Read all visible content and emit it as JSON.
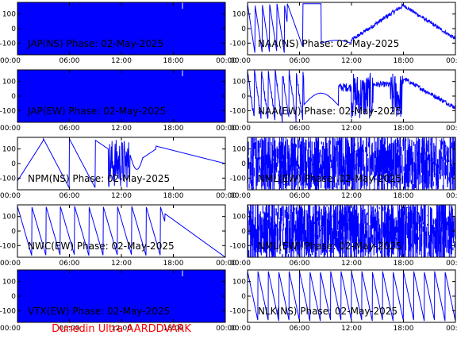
{
  "footer": "Dunedin Ultra AARDDVARK",
  "colors": {
    "trace": "#0000ff",
    "axes": "#000000",
    "footer": "#ff0000"
  },
  "chart_data": [
    {
      "type": "line",
      "title": "JAP(NS) Phase: 02-May-2025",
      "ylim": [
        -180,
        180
      ],
      "yticks": [
        "100",
        "0",
        "-100"
      ],
      "xticks": [
        "00:00",
        "06:00",
        "12:00",
        "18:00",
        "00:00"
      ],
      "pattern": "solid"
    },
    {
      "type": "line",
      "title": "NAA(NS) Phase: 02-May-2025",
      "ylim": [
        -180,
        180
      ],
      "yticks": [
        "100",
        "0",
        "-100"
      ],
      "xticks": [
        "00:00",
        "06:00",
        "12:00",
        "18:00",
        "00:00"
      ],
      "pattern": "naa-ns"
    },
    {
      "type": "line",
      "title": "JAP(EW) Phase: 02-May-2025",
      "ylim": [
        -180,
        180
      ],
      "yticks": [
        "100",
        "0",
        "-100"
      ],
      "xticks": [
        "00:00",
        "06:00",
        "12:00",
        "18:00",
        "00:00"
      ],
      "pattern": "solid"
    },
    {
      "type": "line",
      "title": "NAA(EW) Phase: 02-May-2025",
      "ylim": [
        -180,
        180
      ],
      "yticks": [
        "100",
        "0",
        "-100"
      ],
      "xticks": [
        "00:00",
        "06:00",
        "12:00",
        "18:00",
        "00:00"
      ],
      "pattern": "naa-ew"
    },
    {
      "type": "line",
      "title": "NPM(NS) Phase: 02-May-2025",
      "ylim": [
        -180,
        180
      ],
      "yticks": [
        "100",
        "0",
        "-100"
      ],
      "xticks": [
        "00:00",
        "06:00",
        "12:00",
        "18:00",
        "00:00"
      ],
      "pattern": "npm"
    },
    {
      "type": "line",
      "title": "NML(EW) Phase: 02-May-2025",
      "ylim": [
        -180,
        180
      ],
      "yticks": [
        "100",
        "0",
        "-100"
      ],
      "xticks": [
        "00:00",
        "06:00",
        "12:00",
        "18:00",
        "00:00"
      ],
      "pattern": "noise"
    },
    {
      "type": "line",
      "title": "NWC(EW) Phase: 02-May-2025",
      "ylim": [
        -180,
        180
      ],
      "yticks": [
        "100",
        "0",
        "-100"
      ],
      "xticks": [
        "00:00",
        "06:00",
        "12:00",
        "18:00",
        "00:00"
      ],
      "pattern": "sawtooth-down"
    },
    {
      "type": "line",
      "title": "NML(EW) Phase: 02-May-2025",
      "ylim": [
        -180,
        180
      ],
      "yticks": [
        "100",
        "0",
        "-100"
      ],
      "xticks": [
        "00:00",
        "06:00",
        "12:00",
        "18:00",
        "00:00"
      ],
      "pattern": "noise"
    },
    {
      "type": "line",
      "title": "VTX(EW) Phase: 02-May-2025",
      "ylim": [
        -180,
        180
      ],
      "yticks": [
        "100",
        "0",
        "-100"
      ],
      "xticks": [
        "00:00",
        "06:00",
        "12:00",
        "18:00",
        "00:00"
      ],
      "pattern": "solid"
    },
    {
      "type": "line",
      "title": "NLK(NS) Phase: 02-May-2025",
      "ylim": [
        -180,
        180
      ],
      "yticks": [
        "100",
        "0",
        "-100"
      ],
      "xticks": [
        "00:00",
        "06:00",
        "12:00",
        "18:00",
        "00:00"
      ],
      "pattern": "sawtooth-fast"
    }
  ]
}
